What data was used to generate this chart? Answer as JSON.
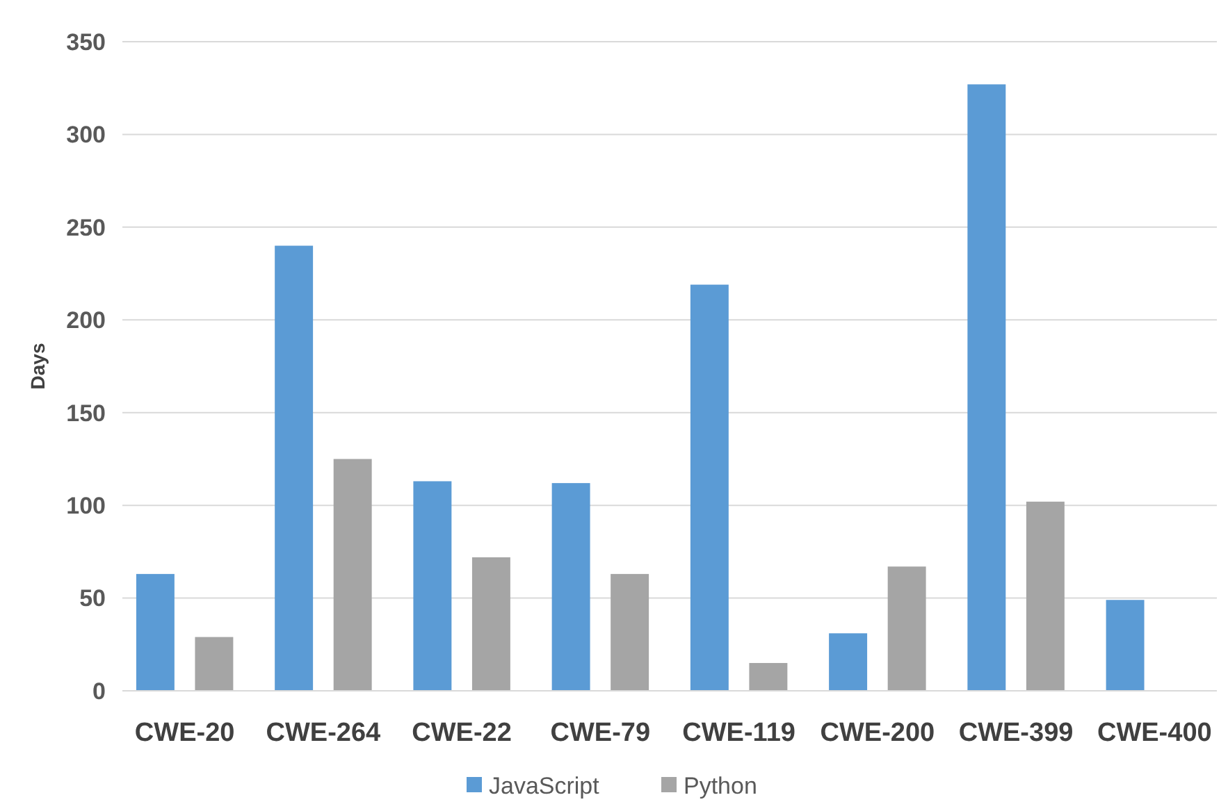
{
  "chart_data": {
    "type": "bar",
    "ylabel": "Days",
    "categories": [
      "CWE-20",
      "CWE-264",
      "CWE-22",
      "CWE-79",
      "CWE-119",
      "CWE-200",
      "CWE-399",
      "CWE-400"
    ],
    "series": [
      {
        "name": "JavaScript",
        "color": "#5b9bd5",
        "values": [
          63,
          240,
          113,
          112,
          219,
          31,
          327,
          49
        ]
      },
      {
        "name": "Python",
        "color": "#a5a5a5",
        "values": [
          29,
          125,
          72,
          63,
          15,
          67,
          102,
          null
        ]
      }
    ],
    "ylim": [
      0,
      350
    ],
    "yticks": [
      0,
      50,
      100,
      150,
      200,
      250,
      300,
      350
    ],
    "grid": "y",
    "legend": "bottom"
  }
}
